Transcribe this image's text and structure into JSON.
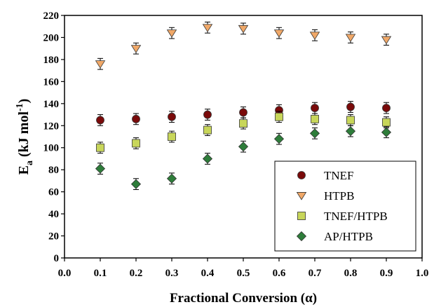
{
  "chart_data": {
    "type": "scatter",
    "xlabel": "Fractional Conversion (α)",
    "ylabel_main": "E",
    "ylabel_sub": "a",
    "ylabel_units": " (kJ mol",
    "ylabel_sup": "-1",
    "ylabel_close": ")",
    "xlim": [
      0.0,
      1.0
    ],
    "ylim": [
      0,
      220
    ],
    "xticks": [
      "0.0",
      "0.1",
      "0.2",
      "0.3",
      "0.4",
      "0.5",
      "0.6",
      "0.7",
      "0.8",
      "0.9",
      "1.0"
    ],
    "yticks": [
      "0",
      "20",
      "40",
      "60",
      "80",
      "100",
      "120",
      "140",
      "160",
      "180",
      "200",
      "220"
    ],
    "grid": false,
    "legend_position": "bottom-right",
    "x": [
      0.1,
      0.2,
      0.3,
      0.4,
      0.5,
      0.6,
      0.7,
      0.8,
      0.9
    ],
    "series": [
      {
        "name": "TNEF",
        "marker": "circle",
        "color": "#7a0a0a",
        "values": [
          125,
          126,
          128,
          130,
          132,
          134,
          136,
          137,
          136
        ],
        "error": [
          5,
          5,
          5,
          5,
          5,
          5,
          5,
          5,
          5
        ]
      },
      {
        "name": "HTPB",
        "marker": "triangle-down",
        "color": "#f0a868",
        "values": [
          176,
          190,
          204,
          209,
          208,
          204,
          202,
          200,
          198
        ],
        "error": [
          5,
          5,
          5,
          5,
          5,
          5,
          5,
          5,
          5
        ]
      },
      {
        "name": "TNEF/HTPB",
        "marker": "square",
        "color": "#c8d65a",
        "values": [
          100,
          104,
          110,
          116,
          122,
          128,
          126,
          125,
          123
        ],
        "error": [
          5,
          5,
          5,
          5,
          5,
          5,
          5,
          5,
          5
        ]
      },
      {
        "name": "AP/HTPB",
        "marker": "diamond",
        "color": "#2e7d3a",
        "values": [
          81,
          67,
          72,
          90,
          101,
          108,
          113,
          115,
          114
        ],
        "error": [
          5,
          5,
          5,
          5,
          5,
          5,
          5,
          5,
          5
        ]
      }
    ]
  }
}
